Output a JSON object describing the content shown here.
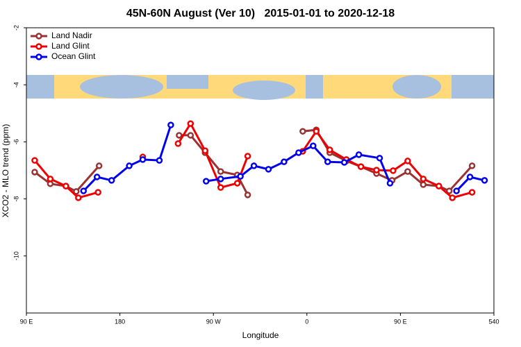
{
  "chart_data": {
    "type": "line",
    "title": "45N-60N August (Ver 10)   2015-01-01 to 2020-12-18",
    "xlabel": "Longitude",
    "ylabel": "XCO2 - MLO trend (ppm)",
    "xlim": [
      90,
      540
    ],
    "xticks": [
      {
        "value": 90,
        "label": "90 E"
      },
      180,
      {
        "value": 270,
        "label": "90 W"
      },
      {
        "value": 360,
        "label": "0"
      },
      {
        "value": 450,
        "label": "90 E"
      },
      540
    ],
    "ylim": [
      -12,
      -2
    ],
    "yticks": [
      -2,
      -4,
      -6,
      -8,
      -10
    ],
    "legend": "upper left",
    "series": [
      {
        "name": "Land Nadir",
        "color": "#993333",
        "x": [
          98,
          113,
          128,
          138,
          160,
          null,
          237,
          248,
          262,
          277,
          293,
          303,
          null,
          356,
          369,
          382,
          398,
          412,
          427,
          442,
          457,
          472,
          487,
          497,
          519
        ],
        "values": [
          -7.06,
          -7.47,
          -7.55,
          -7.74,
          -6.84,
          null,
          -5.77,
          -5.77,
          -6.38,
          -7.04,
          -7.16,
          -7.86,
          null,
          -5.63,
          -5.58,
          -6.38,
          -6.67,
          -6.87,
          -7.11,
          -7.35,
          -7.04,
          -7.5,
          -7.55,
          -7.72,
          -6.84
        ]
      },
      {
        "name": "Land Glint",
        "color": "#ee0000",
        "x": [
          98,
          113,
          128,
          140,
          159,
          null,
          202,
          null,
          236,
          248,
          262,
          277,
          293,
          303,
          null,
          356,
          369,
          382,
          398,
          412,
          427,
          443,
          457,
          472,
          487,
          500,
          519
        ],
        "values": [
          -6.65,
          -7.3,
          -7.55,
          -7.96,
          -7.77,
          null,
          -6.53,
          null,
          -6.06,
          -5.36,
          -6.31,
          -7.6,
          -7.45,
          -6.5,
          null,
          -6.33,
          -5.63,
          -6.28,
          -6.62,
          -6.87,
          -6.99,
          -7.01,
          -6.67,
          -7.3,
          -7.55,
          -7.96,
          -7.77
        ]
      },
      {
        "name": "Ocean Glint",
        "color": "#0000ee",
        "x": [
          145,
          158,
          172,
          189,
          202,
          218,
          229,
          null,
          263,
          277,
          296,
          309,
          323,
          338,
          352,
          366,
          380,
          396,
          410,
          430,
          440,
          null,
          504,
          517,
          531
        ],
        "values": [
          -7.72,
          -7.23,
          -7.35,
          -6.84,
          -6.62,
          -6.65,
          -5.41,
          null,
          -7.38,
          -7.3,
          -7.21,
          -6.84,
          -6.96,
          -6.7,
          -6.38,
          -6.14,
          -6.7,
          -6.72,
          -6.45,
          -6.57,
          -7.45,
          null,
          -7.72,
          -7.23,
          -7.35
        ]
      }
    ]
  }
}
